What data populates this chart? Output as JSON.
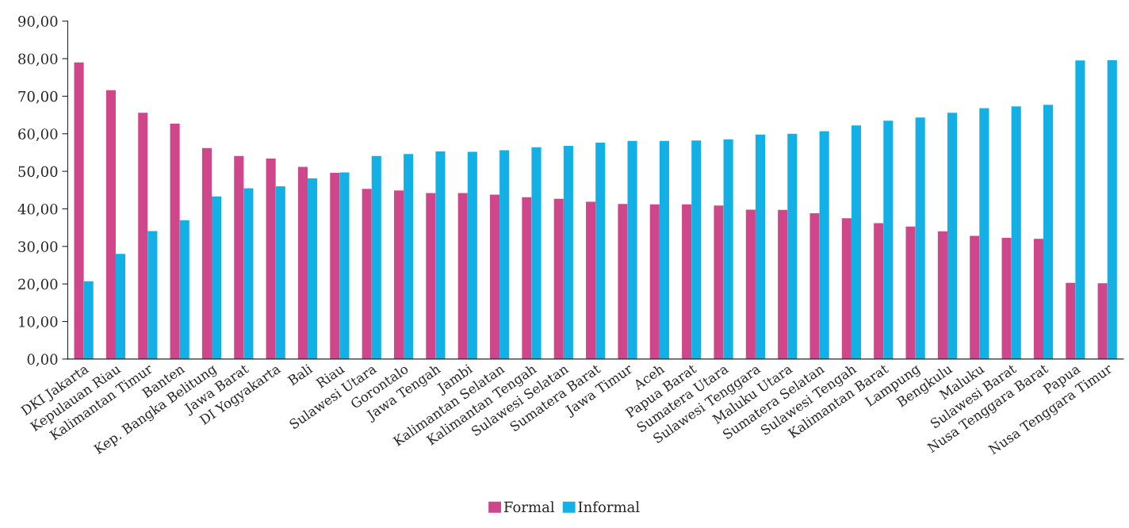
{
  "chart_data": {
    "type": "bar",
    "categories": [
      "DKI Jakarta",
      "Kepulauan Riau",
      "Kalimantan Timur",
      "Banten",
      "Kep. Bangka Belitung",
      "Jawa Barat",
      "DI Yogyakarta",
      "Bali",
      "Riau",
      "Sulawesi Utara",
      "Gorontalo",
      "Jawa Tengah",
      "Jambi",
      "Kalimantan Selatan",
      "Kalimantan Tengah",
      "Sulawesi Selatan",
      "Sumatera Barat",
      "Jawa Timur",
      "Aceh",
      "Papua Barat",
      "Sumatera Utara",
      "Sulawesi Tenggara",
      "Maluku Utara",
      "Sumatera Selatan",
      "Sulawesi Tengah",
      "Kalimantan Barat",
      "Lampung",
      "Bengkulu",
      "Maluku",
      "Sulawesi Barat",
      "Nusa Tenggara Barat",
      "Papua",
      "Nusa Tenggara Timur"
    ],
    "series": [
      {
        "name": "Formal",
        "color": "#d0468a",
        "values": [
          79.0,
          71.6,
          65.6,
          62.7,
          56.2,
          54.1,
          53.4,
          51.2,
          49.6,
          45.3,
          44.9,
          44.2,
          44.2,
          43.8,
          43.1,
          42.7,
          41.9,
          41.3,
          41.2,
          41.2,
          40.9,
          39.8,
          39.7,
          38.8,
          37.5,
          36.2,
          35.3,
          34.0,
          32.8,
          32.3,
          32.0,
          20.3,
          20.2
        ]
      },
      {
        "name": "Informal",
        "color": "#13b0e6",
        "values": [
          20.7,
          28.0,
          34.1,
          37.0,
          43.3,
          45.5,
          46.0,
          48.1,
          49.7,
          54.1,
          54.6,
          55.3,
          55.2,
          55.6,
          56.4,
          56.8,
          57.6,
          58.1,
          58.1,
          58.2,
          58.5,
          59.8,
          60.0,
          60.7,
          62.2,
          63.5,
          64.3,
          65.6,
          66.8,
          67.3,
          67.7,
          79.5,
          79.6
        ]
      }
    ],
    "ylim": [
      0,
      90
    ],
    "yticks": [
      {
        "value": 0,
        "label": "0,00"
      },
      {
        "value": 10,
        "label": "10,00"
      },
      {
        "value": 20,
        "label": "20,00"
      },
      {
        "value": 30,
        "label": "30,00"
      },
      {
        "value": 40,
        "label": "40,00"
      },
      {
        "value": 50,
        "label": "50,00"
      },
      {
        "value": 60,
        "label": "60,00"
      },
      {
        "value": 70,
        "label": "70,00"
      },
      {
        "value": 80,
        "label": "80,00"
      },
      {
        "value": 90,
        "label": "90,00"
      }
    ],
    "legend": "bottom",
    "grid": false
  }
}
